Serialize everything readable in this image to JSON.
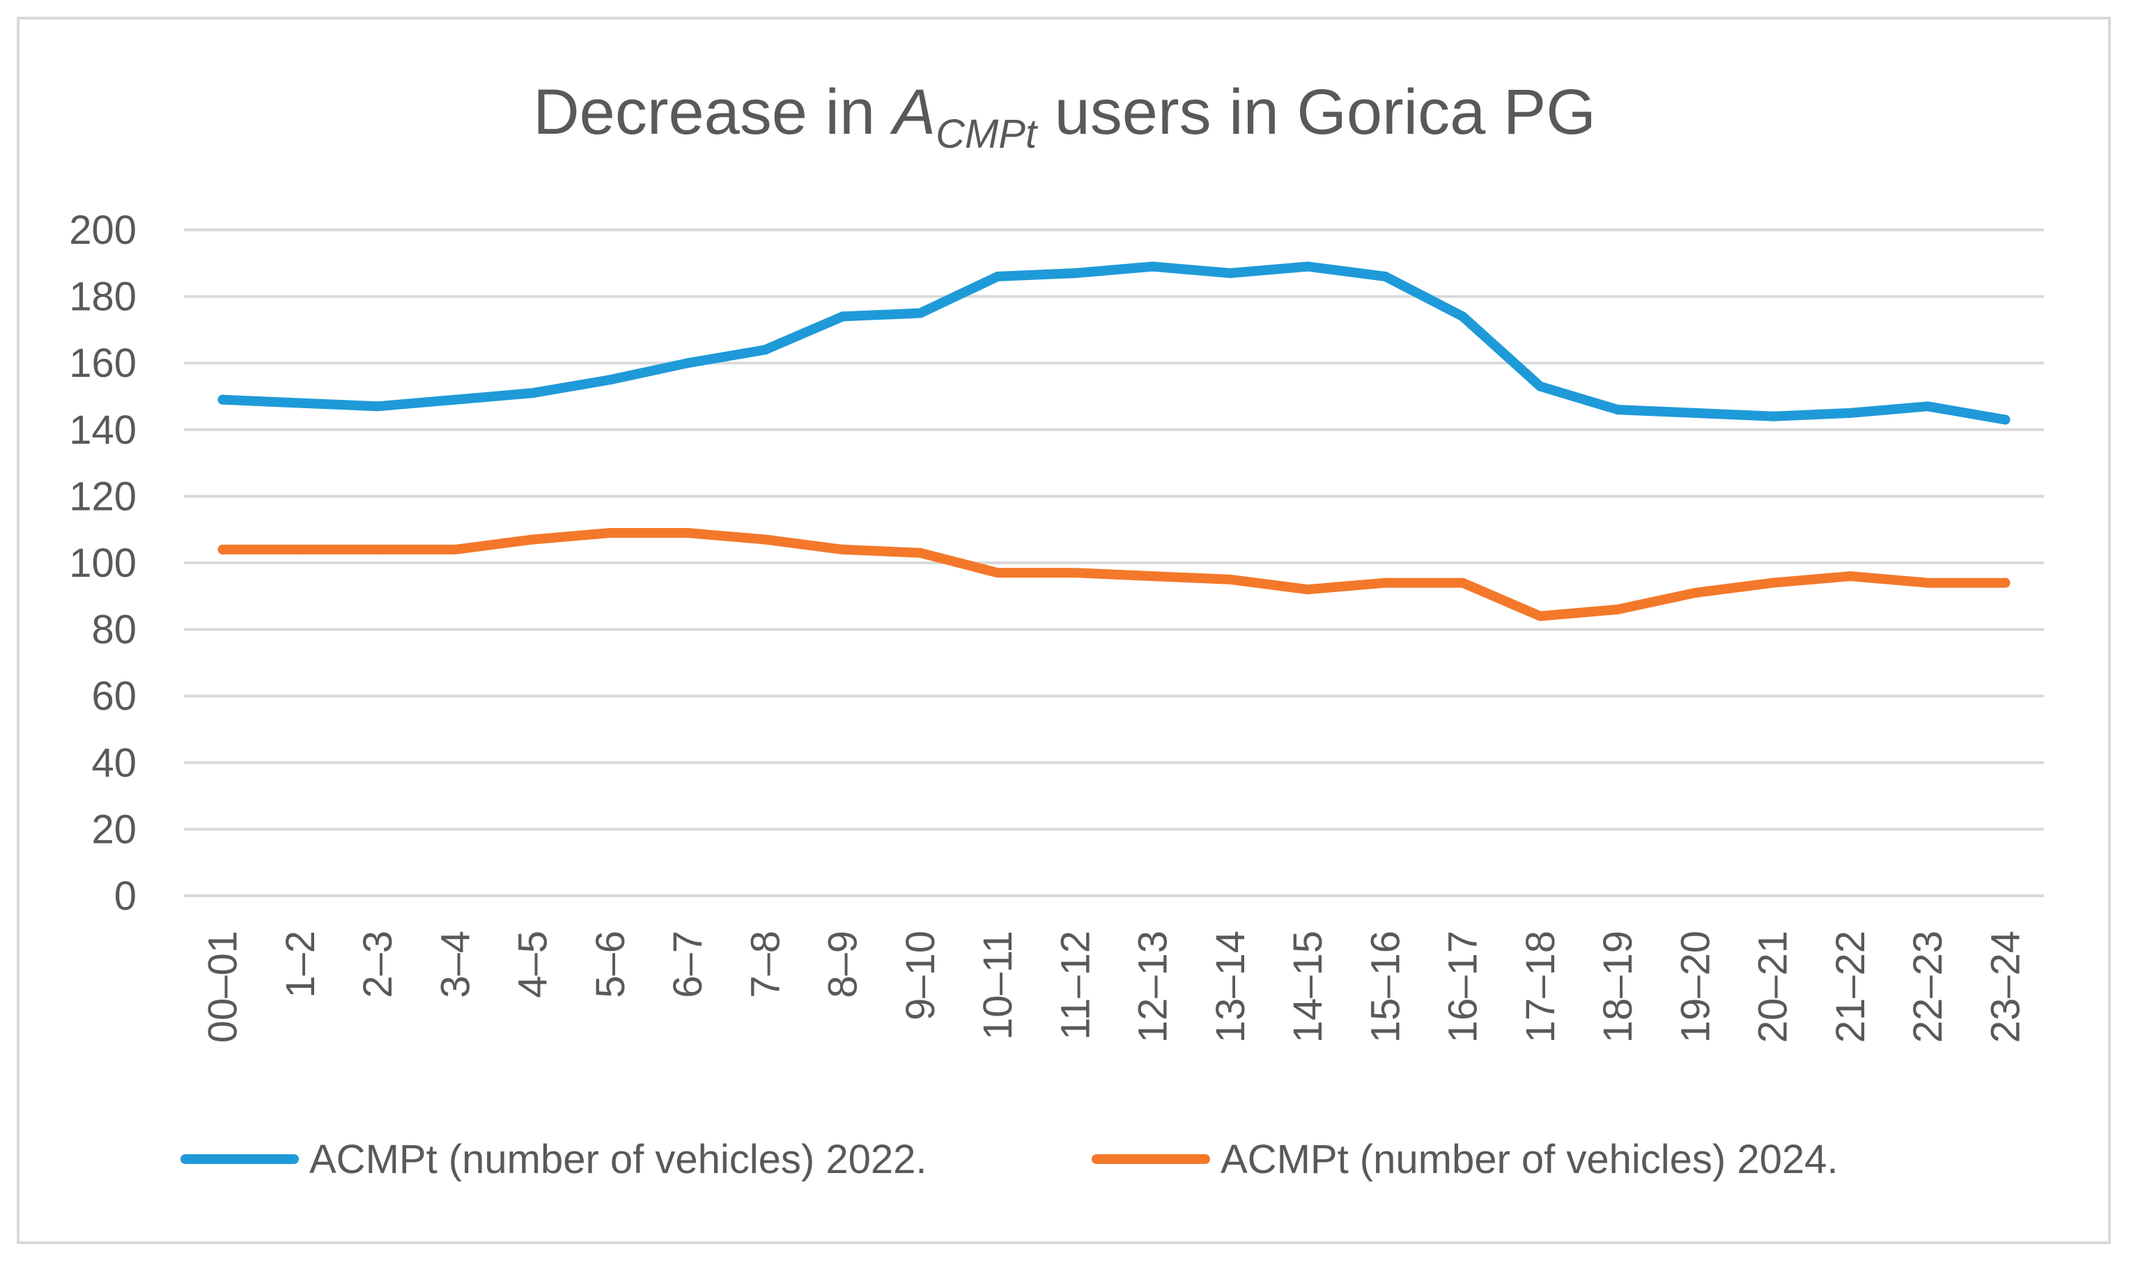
{
  "chart_data": {
    "type": "line",
    "title": {
      "prefix": "Decrease in ",
      "var_main": "A",
      "var_sub": "CMPt",
      "suffix": " users in Gorica PG"
    },
    "xlabel": "",
    "ylabel": "",
    "ylim": [
      0,
      200
    ],
    "yticks": [
      0,
      20,
      40,
      60,
      80,
      100,
      120,
      140,
      160,
      180,
      200
    ],
    "grid": true,
    "legend_position": "bottom",
    "categories": [
      "00–01",
      "1–2",
      "2–3",
      "3–4",
      "4–5",
      "5–6",
      "6–7",
      "7–8",
      "8–9",
      "9–10",
      "10–11",
      "11–12",
      "12–13",
      "13–14",
      "14–15",
      "15–16",
      "16–17",
      "17–18",
      "18–19",
      "19–20",
      "20–21",
      "21–22",
      "22–23",
      "23–24"
    ],
    "series": [
      {
        "name": "ACMPt (number of vehicles) 2022.",
        "color": "#1f9ad8",
        "values": [
          149,
          148,
          147,
          149,
          151,
          155,
          160,
          164,
          174,
          175,
          186,
          187,
          189,
          187,
          189,
          186,
          174,
          153,
          146,
          145,
          144,
          145,
          147,
          143
        ]
      },
      {
        "name": "ACMPt  (number of vehicles) 2024.",
        "color": "#f4782a",
        "values": [
          104,
          104,
          104,
          104,
          107,
          109,
          109,
          107,
          104,
          103,
          97,
          97,
          96,
          95,
          92,
          94,
          94,
          84,
          86,
          91,
          94,
          96,
          94,
          94
        ]
      }
    ]
  }
}
